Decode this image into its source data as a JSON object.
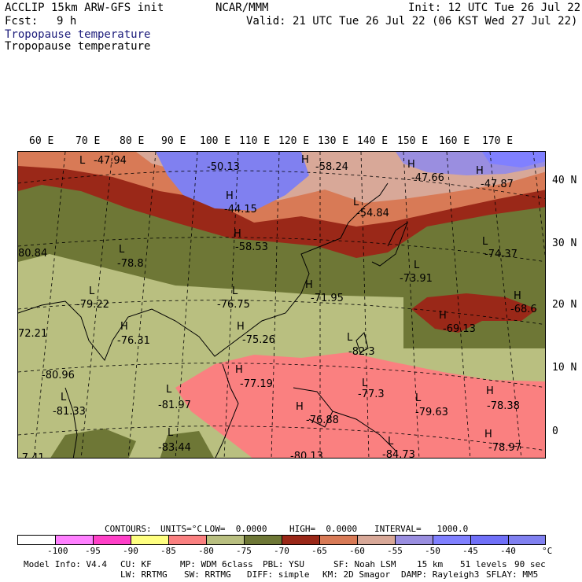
{
  "header": {
    "model": "ACCLIP 15km ARW-GFS init",
    "center": "NCAR/MMM",
    "init": "Init: 12 UTC Tue 26 Jul 22",
    "fcst_label": "Fcst:",
    "fcst_value": "9 h",
    "valid": "Valid: 21 UTC Tue 26 Jul 22 (06 KST Wed 27 Jul 22)",
    "field_title_1": "Tropopause temperature",
    "field_title_2": "Tropopause temperature"
  },
  "lon_labels": [
    "60 E",
    "70 E",
    "80 E",
    "90 E",
    "100 E",
    "110 E",
    "120 E",
    "130 E",
    "140 E",
    "150 E",
    "160 E",
    "170 E"
  ],
  "lat_labels": [
    "40 N",
    "30 N",
    "20 N",
    "10 N",
    "0"
  ],
  "map_labels": [
    {
      "kind": "L",
      "text": "L"
    },
    {
      "kind": "v",
      "text": "-47.94"
    },
    {
      "kind": "v",
      "text": "-50.13"
    },
    {
      "kind": "H",
      "text": "H"
    },
    {
      "kind": "v",
      "text": "-58.24"
    },
    {
      "kind": "H",
      "text": "H"
    },
    {
      "kind": "v",
      "text": "-47.66"
    },
    {
      "kind": "H",
      "text": "H"
    },
    {
      "kind": "v",
      "text": "-47.87"
    },
    {
      "kind": "H",
      "text": "H"
    },
    {
      "kind": "v",
      "text": "-44.15"
    },
    {
      "kind": "L",
      "text": "L"
    },
    {
      "kind": "v",
      "text": "-54.84"
    },
    {
      "kind": "H",
      "text": "H"
    },
    {
      "kind": "v",
      "text": "-58.53"
    },
    {
      "kind": "v",
      "text": "80.84"
    },
    {
      "kind": "L",
      "text": "L"
    },
    {
      "kind": "v",
      "text": "-78.8"
    },
    {
      "kind": "L",
      "text": "L"
    },
    {
      "kind": "v",
      "text": "-74.37"
    },
    {
      "kind": "L",
      "text": "L"
    },
    {
      "kind": "v",
      "text": "-73.91"
    },
    {
      "kind": "L",
      "text": "L"
    },
    {
      "kind": "v",
      "text": "-79.22"
    },
    {
      "kind": "L",
      "text": "L"
    },
    {
      "kind": "v",
      "text": "-76.75"
    },
    {
      "kind": "H",
      "text": "H"
    },
    {
      "kind": "v",
      "text": "-71.95"
    },
    {
      "kind": "H",
      "text": "H"
    },
    {
      "kind": "v",
      "text": "-68.6"
    },
    {
      "kind": "v",
      "text": "72.21"
    },
    {
      "kind": "H",
      "text": "H"
    },
    {
      "kind": "v",
      "text": "-76.31"
    },
    {
      "kind": "H",
      "text": "H"
    },
    {
      "kind": "v",
      "text": "-75.26"
    },
    {
      "kind": "H",
      "text": "H"
    },
    {
      "kind": "v",
      "text": "-69.13"
    },
    {
      "kind": "L",
      "text": "L"
    },
    {
      "kind": "v",
      "text": "-82.3"
    },
    {
      "kind": "v",
      "text": "-80.96"
    },
    {
      "kind": "H",
      "text": "H"
    },
    {
      "kind": "v",
      "text": "-77.19"
    },
    {
      "kind": "L",
      "text": "L"
    },
    {
      "kind": "v",
      "text": "-77.3"
    },
    {
      "kind": "H",
      "text": "H"
    },
    {
      "kind": "v",
      "text": "-78.38"
    },
    {
      "kind": "L",
      "text": "L"
    },
    {
      "kind": "v",
      "text": "-81.33"
    },
    {
      "kind": "L",
      "text": "L"
    },
    {
      "kind": "v",
      "text": "-81.97"
    },
    {
      "kind": "H",
      "text": "H"
    },
    {
      "kind": "v",
      "text": "-76.88"
    },
    {
      "kind": "L",
      "text": "L"
    },
    {
      "kind": "v",
      "text": "-79.63"
    },
    {
      "kind": "H",
      "text": "H"
    },
    {
      "kind": "v",
      "text": "-78.97"
    },
    {
      "kind": "L",
      "text": "L"
    },
    {
      "kind": "v",
      "text": "-83.44"
    },
    {
      "kind": "v",
      "text": "-80.13"
    },
    {
      "kind": "L",
      "text": "L"
    },
    {
      "kind": "v",
      "text": "-84.73"
    },
    {
      "kind": "v",
      "text": "-7.41"
    }
  ],
  "colors": {
    "c1": "#ffffff",
    "c2": "#ff80ff",
    "c3": "#ff40c8",
    "c4": "#ffff80",
    "c5": "#fa8080",
    "c6": "#b9bf80",
    "c7": "#6e7736",
    "c8": "#9a2818",
    "c9": "#d87a56",
    "c10": "#d8a898",
    "c11": "#9a8ee0",
    "c12": "#8080ff",
    "c13": "#7070f8",
    "c14": "#8080f0"
  },
  "contours": {
    "label": "CONTOURS:",
    "units": "UNITS=°C",
    "low": "LOW=  0.0000",
    "high": "HIGH=  0.0000",
    "interval": "INTERVAL=   1000.0"
  },
  "colorbar_ticks": [
    "-100",
    "-95",
    "-90",
    "-85",
    "-80",
    "-75",
    "-70",
    "-65",
    "-60",
    "-55",
    "-50",
    "-45",
    "-40",
    "°C"
  ],
  "model_info_line1": [
    "Model Info: V4.4",
    "CU: KF",
    "MP: WDM 6class",
    "PBL: YSU",
    "SF: Noah LSM",
    "15 km",
    "51 levels",
    "90 sec"
  ],
  "model_info_line2": [
    "LW: RRTMG",
    "SW: RRTMG",
    "DIFF: simple",
    "KM: 2D Smagor",
    "DAMP: Rayleigh3",
    "SFLAY: MM5"
  ]
}
